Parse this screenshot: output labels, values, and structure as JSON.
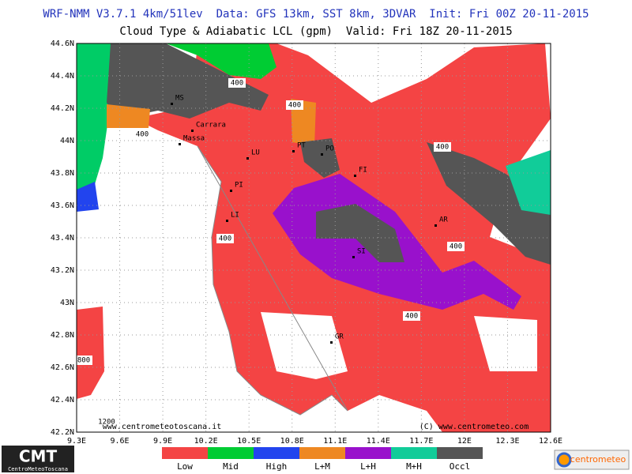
{
  "header": {
    "line1": "WRF-NMM V3.7.1 4km/51lev  Data: GFS 13km, SST 8km, 3DVAR  Init: Fri 00Z 20-11-2015",
    "line2": "Cloud Type & Adiabatic LCL (gpm)  Valid: Fri 18Z 20-11-2015"
  },
  "map": {
    "lon_labels": [
      "9.3E",
      "9.6E",
      "9.9E",
      "10.2E",
      "10.5E",
      "10.8E",
      "11.1E",
      "11.4E",
      "11.7E",
      "12E",
      "12.3E",
      "12.6E"
    ],
    "lat_labels": [
      "44.6N",
      "44.4N",
      "44.2N",
      "44N",
      "43.8N",
      "43.6N",
      "43.4N",
      "43.2N",
      "43N",
      "42.8N",
      "42.6N",
      "42.4N",
      "42.2N"
    ],
    "cities": [
      "MS",
      "Carrara",
      "Massa",
      "LU",
      "PT",
      "PO",
      "FI",
      "PI",
      "LI",
      "AR",
      "SI",
      "GR"
    ],
    "contour_labels": [
      "400",
      "400",
      "400",
      "400",
      "400",
      "400",
      "400",
      "800",
      "1200"
    ],
    "credits": [
      "www.centrometeotoscana.it",
      "(C) www.centrometeo.com"
    ]
  },
  "legend": [
    {
      "name": "Low",
      "color": "#f44444"
    },
    {
      "name": "Mid",
      "color": "#00cc33"
    },
    {
      "name": "High",
      "color": "#2244ee"
    },
    {
      "name": "L+M",
      "color": "#ee8822"
    },
    {
      "name": "L+H",
      "color": "#9911cc"
    },
    {
      "name": "M+H",
      "color": "#11cc99"
    },
    {
      "name": "Occl",
      "color": "#555555"
    }
  ],
  "logos": {
    "left": "CMT",
    "left_sub": "CentroMeteoToscana",
    "right": "centrometeo"
  }
}
